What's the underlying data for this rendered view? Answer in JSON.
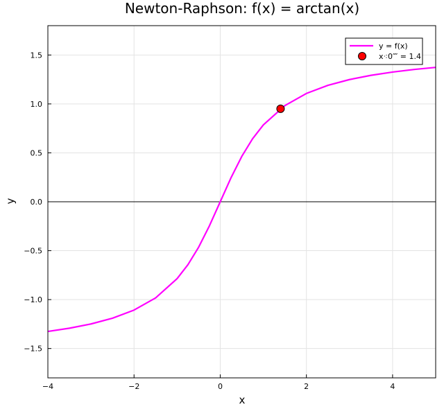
{
  "chart_data": {
    "type": "line",
    "title": "Newton-Raphson: f(x) = arctan(x)",
    "xlabel": "x",
    "ylabel": "y",
    "xlim": [
      -4,
      5
    ],
    "ylim": [
      -1.8,
      1.8
    ],
    "x_ticks": [
      -4,
      -2,
      0,
      2,
      4
    ],
    "x_tick_labels": [
      "−4",
      "−2",
      "0",
      "2",
      "4"
    ],
    "y_ticks": [
      -1.5,
      -1.0,
      -0.5,
      0.0,
      0.5,
      1.0,
      1.5
    ],
    "y_tick_labels": [
      "−1.5",
      "−1.0",
      "−0.5",
      "0.0",
      "0.5",
      "1.0",
      "1.5"
    ],
    "grid": true,
    "legend_position": "top-right",
    "series": [
      {
        "name": "y = f(x)",
        "kind": "line",
        "color": "#ff00ff",
        "x": [
          -4,
          -3.5,
          -3,
          -2.5,
          -2,
          -1.5,
          -1,
          -0.75,
          -0.5,
          -0.25,
          0,
          0.25,
          0.5,
          0.75,
          1,
          1.5,
          2,
          2.5,
          3,
          3.5,
          4,
          4.5,
          5
        ],
        "y": [
          -1.3258,
          -1.2925,
          -1.249,
          -1.1903,
          -1.1071,
          -0.9828,
          -0.7854,
          -0.6435,
          -0.4636,
          -0.245,
          0,
          0.245,
          0.4636,
          0.6435,
          0.7854,
          0.9828,
          1.1071,
          1.1903,
          1.249,
          1.2925,
          1.3258,
          1.3521,
          1.3734
        ]
      },
      {
        "name": "x⁖0⁗ = 1.4",
        "kind": "scatter",
        "color": "#ff0000",
        "x": [
          1.4
        ],
        "y": [
          0.9505
        ]
      }
    ],
    "reference_lines": [
      {
        "axis": "y",
        "value": 0,
        "color": "#000000"
      }
    ]
  }
}
